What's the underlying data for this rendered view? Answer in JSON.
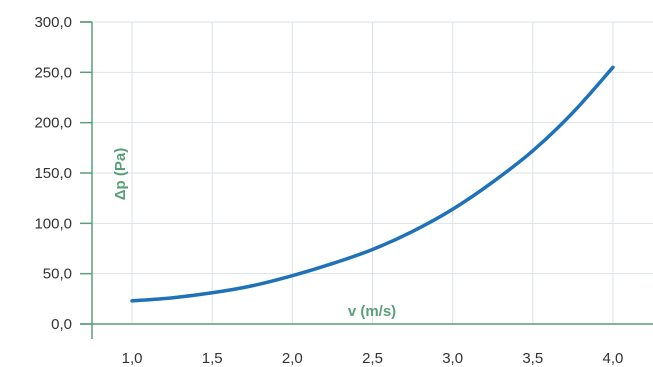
{
  "chart_data": {
    "type": "line",
    "xlabel": "v (m/s)",
    "ylabel": "Δp (Pa)",
    "xlim": [
      0.75,
      4.25
    ],
    "ylim": [
      0,
      300
    ],
    "x_ticks": [
      1.0,
      1.5,
      2.0,
      2.5,
      3.0,
      3.5,
      4.0
    ],
    "x_tick_labels": [
      "1,0",
      "1,5",
      "2,0",
      "2,5",
      "3,0",
      "3,5",
      "4,0"
    ],
    "y_ticks": [
      0,
      50,
      100,
      150,
      200,
      250,
      300
    ],
    "y_tick_labels": [
      "0,0",
      "50,0",
      "100,0",
      "150,0",
      "200,0",
      "250,0",
      "300,0"
    ],
    "grid": true,
    "series": [
      {
        "color": "#1f72b8",
        "x": [
          1.0,
          1.25,
          1.5,
          1.75,
          2.0,
          2.25,
          2.5,
          2.75,
          3.0,
          3.25,
          3.5,
          3.75,
          4.0
        ],
        "y": [
          23,
          26,
          31,
          38,
          48,
          60,
          74,
          92,
          114,
          141,
          172,
          210,
          255
        ]
      }
    ],
    "colors": {
      "axis": "#5a9e7c",
      "grid": "#dde3e8",
      "tick_text": "#333333"
    }
  }
}
